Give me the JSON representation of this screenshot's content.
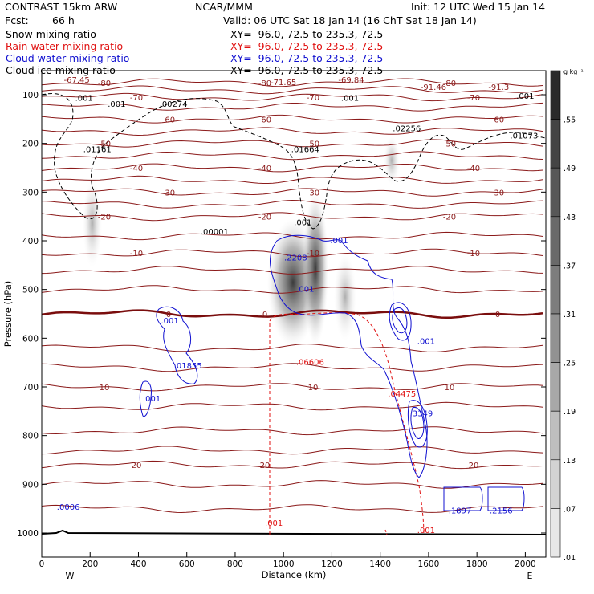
{
  "header": {
    "model": "CONTRAST 15km ARW",
    "org": "NCAR/MMM",
    "init": "Init: 12 UTC Wed 15 Jan 14",
    "fcst_label": "Fcst:",
    "fcst_value": "66 h",
    "valid": "Valid: 06 UTC Sat 18 Jan 14 (16 ChT Sat 18 Jan 14)"
  },
  "fields": [
    {
      "name": "Snow mixing ratio",
      "xy": "XY=  96.0, 72.5 to 235.3, 72.5",
      "color": "#000000"
    },
    {
      "name": "Rain water mixing ratio",
      "xy": "XY=  96.0, 72.5 to 235.3, 72.5",
      "color": "#e01010"
    },
    {
      "name": "Cloud water mixing ratio",
      "xy": "XY=  96.0, 72.5 to 235.3, 72.5",
      "color": "#1010d0"
    },
    {
      "name": "Cloud ice mixing ratio",
      "xy": "XY=  96.0, 72.5 to 235.3, 72.5",
      "color": "#000000"
    }
  ],
  "chart_data": {
    "type": "heatmap",
    "title": "",
    "xlabel": "Distance (km)",
    "ylabel": "Pressure (hPa)",
    "xlim": [
      0,
      2085
    ],
    "ylim": [
      1000,
      60
    ],
    "x_ticks": [
      0,
      200,
      400,
      600,
      800,
      1000,
      1200,
      1400,
      1600,
      1800,
      2000
    ],
    "y_ticks": [
      100,
      200,
      300,
      400,
      500,
      600,
      700,
      800,
      900,
      1000
    ],
    "x_end_labels": {
      "left": "W",
      "right": "E"
    },
    "colorbar": {
      "unit": "g kg⁻¹",
      "labels": [
        ".01",
        ".07",
        ".13",
        ".19",
        ".25",
        ".31",
        ".37",
        ".43",
        ".49",
        ".55"
      ]
    },
    "temperature_isotherms": [
      {
        "label": "-80",
        "p": 75
      },
      {
        "label": "-70",
        "p": 105
      },
      {
        "label": "-60",
        "p": 150
      },
      {
        "label": "-50",
        "p": 200
      },
      {
        "label": "-40",
        "p": 250
      },
      {
        "label": "-30",
        "p": 300
      },
      {
        "label": "-20",
        "p": 350
      },
      {
        "label": "-10",
        "p": 425
      },
      {
        "label": "0",
        "p": 550
      },
      {
        "label": "10",
        "p": 700
      },
      {
        "label": "20",
        "p": 860
      }
    ],
    "annotations": [
      {
        "text": "-67.45",
        "x": 145,
        "p": 75,
        "color": "#8b1a1a"
      },
      {
        "text": "-71.65",
        "x": 1000,
        "p": 80,
        "color": "#8b1a1a"
      },
      {
        "text": "-69.84",
        "x": 1280,
        "p": 75,
        "color": "#8b1a1a"
      },
      {
        "text": "-91.46",
        "x": 1620,
        "p": 90,
        "color": "#8b1a1a"
      },
      {
        "text": "-91.3",
        "x": 1890,
        "p": 90,
        "color": "#8b1a1a"
      },
      {
        "text": ".00274",
        "x": 545,
        "p": 125,
        "color": "#000"
      },
      {
        "text": ".001",
        "x": 175,
        "p": 112,
        "color": "#000"
      },
      {
        "text": ".001",
        "x": 310,
        "p": 125,
        "color": "#000"
      },
      {
        "text": ".001",
        "x": 1275,
        "p": 112,
        "color": "#000"
      },
      {
        "text": ".001",
        "x": 2000,
        "p": 108,
        "color": "#000"
      },
      {
        "text": ".02256",
        "x": 1510,
        "p": 175,
        "color": "#000"
      },
      {
        "text": ".01073",
        "x": 1995,
        "p": 190,
        "color": "#000"
      },
      {
        "text": ".01161",
        "x": 230,
        "p": 218,
        "color": "#000"
      },
      {
        "text": ".01664",
        "x": 1090,
        "p": 218,
        "color": "#000"
      },
      {
        "text": ".00001",
        "x": 715,
        "p": 387,
        "color": "#000"
      },
      {
        "text": ".001",
        "x": 1080,
        "p": 368,
        "color": "#000"
      },
      {
        "text": ".001",
        "x": 1230,
        "p": 405,
        "color": "#1010d0"
      },
      {
        "text": ".2208",
        "x": 1050,
        "p": 440,
        "color": "#1010d0"
      },
      {
        "text": ".001",
        "x": 1090,
        "p": 505,
        "color": "#1010d0"
      },
      {
        "text": ".001",
        "x": 530,
        "p": 570,
        "color": "#1010d0"
      },
      {
        "text": ".01855",
        "x": 605,
        "p": 662,
        "color": "#1010d0"
      },
      {
        "text": ".06606",
        "x": 1110,
        "p": 655,
        "color": "#e01010"
      },
      {
        "text": ".04475",
        "x": 1490,
        "p": 720,
        "color": "#e01010"
      },
      {
        "text": ".3349",
        "x": 1570,
        "p": 760,
        "color": "#1010d0"
      },
      {
        "text": ".001",
        "x": 1590,
        "p": 612,
        "color": "#1010d0"
      },
      {
        "text": ".001",
        "x": 455,
        "p": 730,
        "color": "#1010d0"
      },
      {
        "text": ".0006",
        "x": 110,
        "p": 952,
        "color": "#1010d0"
      },
      {
        "text": ".1897",
        "x": 1730,
        "p": 960,
        "color": "#1010d0"
      },
      {
        "text": ".2156",
        "x": 1900,
        "p": 960,
        "color": "#1010d0"
      },
      {
        "text": ".001",
        "x": 960,
        "p": 985,
        "color": "#e01010"
      },
      {
        "text": ".001",
        "x": 1590,
        "p": 1000,
        "color": "#e01010"
      }
    ]
  }
}
